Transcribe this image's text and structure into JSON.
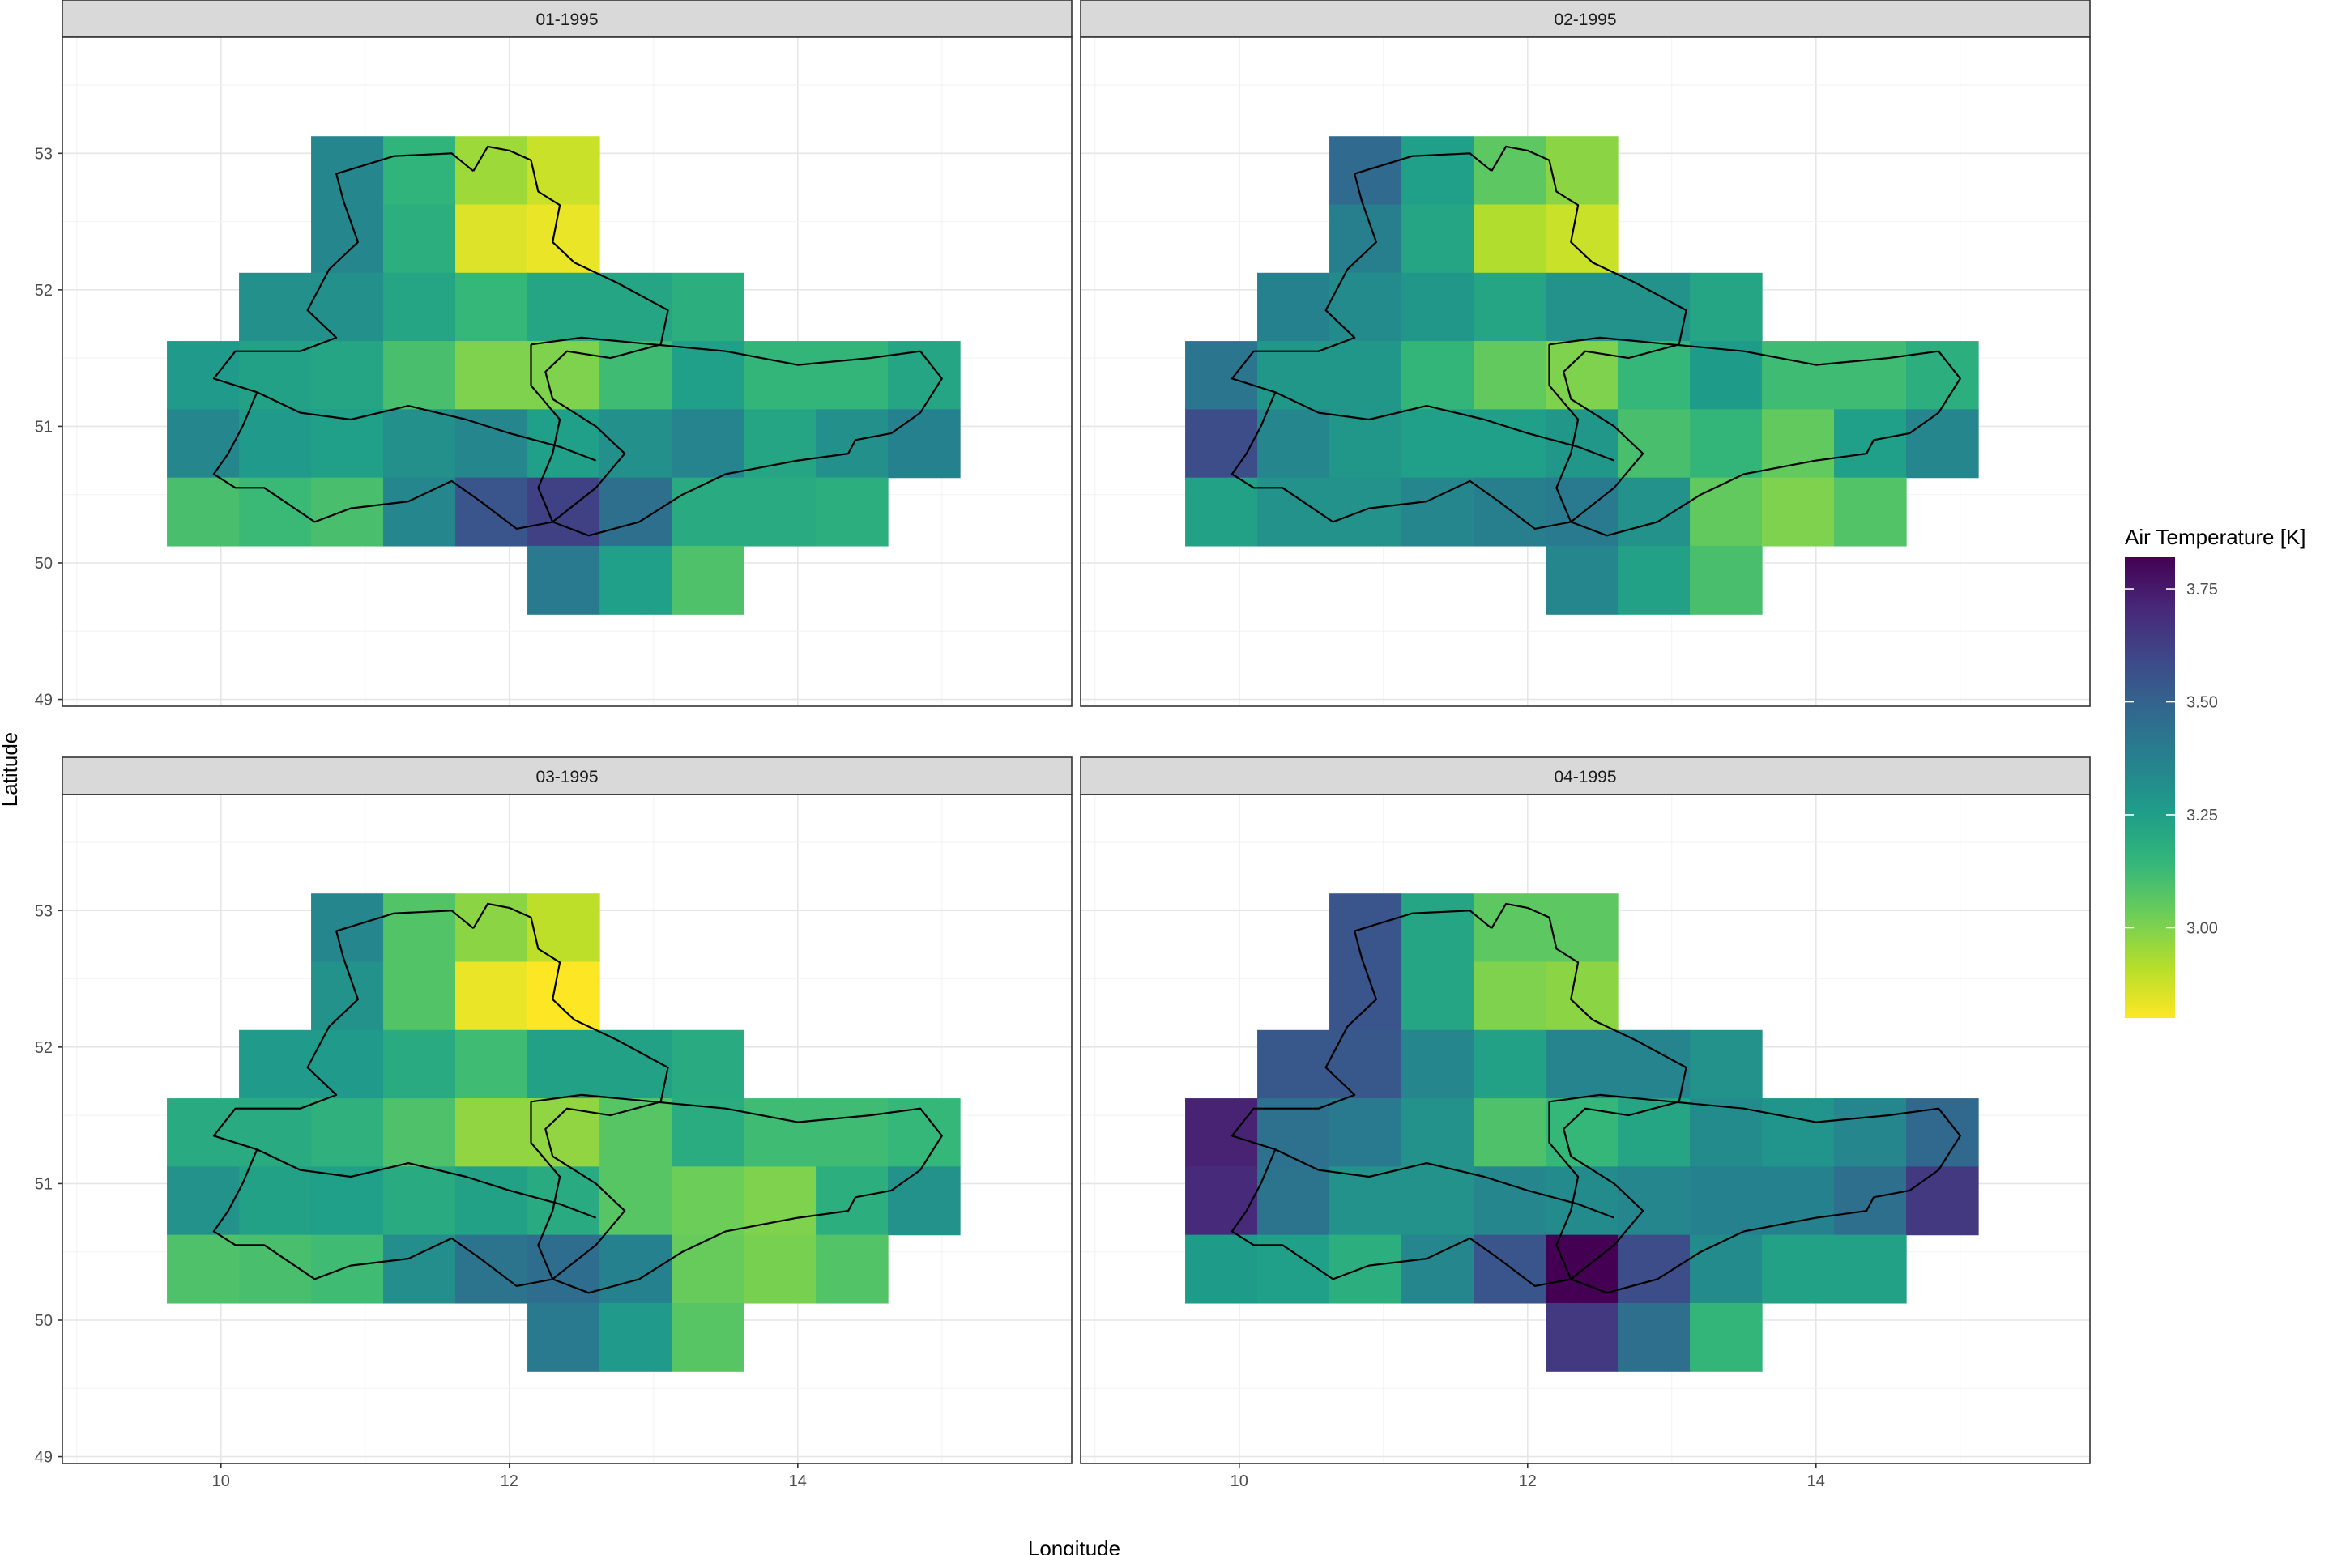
{
  "chart_data": {
    "type": "heatmap",
    "xlabel": "Longitude",
    "ylabel": "Latitude",
    "xlim": [
      8.9,
      15.9
    ],
    "ylim": [
      48.95,
      53.85
    ],
    "x_ticks": [
      10,
      12,
      14
    ],
    "y_ticks": [
      49,
      50,
      51,
      52,
      53
    ],
    "x_tick_labels": [
      "10",
      "12",
      "14"
    ],
    "y_tick_labels": [
      "49",
      "50",
      "51",
      "52",
      "53"
    ],
    "grid": true,
    "cell_size_deg": 0.5,
    "grid_lon": [
      9.875,
      10.375,
      10.875,
      11.375,
      11.875,
      12.375,
      12.875,
      13.375,
      13.875,
      14.375,
      14.875
    ],
    "grid_lat": [
      52.875,
      52.375,
      51.875,
      51.375,
      50.875,
      50.375,
      49.875
    ],
    "legend": {
      "title": "Air Temperature [K]",
      "position": "right",
      "range": [
        2.8,
        3.82
      ],
      "ticks": [
        3.0,
        3.25,
        3.5,
        3.75
      ],
      "tick_labels": [
        "3.00",
        "3.25",
        "3.50",
        "3.75"
      ],
      "colors": [
        "#fde725",
        "#b5de2b",
        "#6ece58",
        "#35b779",
        "#1f9e89",
        "#26828e",
        "#31688e",
        "#3e4989",
        "#482878",
        "#440154"
      ]
    },
    "panels": [
      {
        "label": "01-1995",
        "values": [
          [
            null,
            null,
            3.35,
            3.16,
            2.95,
            2.88,
            null,
            null,
            null,
            null,
            null
          ],
          [
            null,
            null,
            3.35,
            3.18,
            2.85,
            2.83,
            null,
            null,
            null,
            null,
            null
          ],
          [
            null,
            3.31,
            3.31,
            3.22,
            3.14,
            3.22,
            3.22,
            3.18,
            null,
            null,
            null
          ],
          [
            3.27,
            3.24,
            3.22,
            3.1,
            3.0,
            3.0,
            3.12,
            3.25,
            3.15,
            3.15,
            3.22
          ],
          [
            3.35,
            3.27,
            3.25,
            3.31,
            3.35,
            3.25,
            3.31,
            3.36,
            3.22,
            3.31,
            3.37
          ],
          [
            3.1,
            3.13,
            3.1,
            3.35,
            3.55,
            3.62,
            3.45,
            3.2,
            3.2,
            3.18,
            null
          ],
          [
            null,
            null,
            null,
            null,
            null,
            3.4,
            3.25,
            3.09,
            null,
            null,
            null
          ]
        ]
      },
      {
        "label": "02-1995",
        "values": [
          [
            null,
            null,
            3.47,
            3.25,
            3.06,
            2.98,
            null,
            null,
            null,
            null,
            null
          ],
          [
            null,
            null,
            3.38,
            3.22,
            2.92,
            2.88,
            null,
            null,
            null,
            null,
            null
          ],
          [
            null,
            3.37,
            3.33,
            3.28,
            3.22,
            3.3,
            3.3,
            3.22,
            null,
            null,
            null
          ],
          [
            3.42,
            3.28,
            3.28,
            3.15,
            3.05,
            3.0,
            3.14,
            3.26,
            3.12,
            3.12,
            3.18
          ],
          [
            3.58,
            3.35,
            3.28,
            3.25,
            3.25,
            3.28,
            3.1,
            3.15,
            3.05,
            3.25,
            3.35
          ],
          [
            3.24,
            3.3,
            3.3,
            3.35,
            3.38,
            3.4,
            3.3,
            3.05,
            3.0,
            3.08,
            null
          ],
          [
            null,
            null,
            null,
            null,
            null,
            3.35,
            3.24,
            3.1,
            null,
            null,
            null
          ]
        ]
      },
      {
        "label": "03-1995",
        "values": [
          [
            null,
            null,
            3.35,
            3.08,
            2.98,
            2.9,
            null,
            null,
            null,
            null,
            null
          ],
          [
            null,
            null,
            3.3,
            3.08,
            2.83,
            2.8,
            null,
            null,
            null,
            null,
            null
          ],
          [
            null,
            3.27,
            3.27,
            3.2,
            3.12,
            3.24,
            3.24,
            3.2,
            null,
            null,
            null
          ],
          [
            3.2,
            3.2,
            3.17,
            3.09,
            2.97,
            2.97,
            3.07,
            3.19,
            3.12,
            3.12,
            3.14
          ],
          [
            3.3,
            3.24,
            3.25,
            3.2,
            3.24,
            3.2,
            3.07,
            3.03,
            3.0,
            3.18,
            3.3
          ],
          [
            3.09,
            3.1,
            3.12,
            3.32,
            3.43,
            3.46,
            3.37,
            3.04,
            3.01,
            3.08,
            null
          ],
          [
            null,
            null,
            null,
            null,
            null,
            3.4,
            3.27,
            3.07,
            null,
            null,
            null
          ]
        ]
      },
      {
        "label": "04-1995",
        "values": [
          [
            null,
            null,
            3.55,
            3.22,
            3.06,
            3.06,
            null,
            null,
            null,
            null,
            null
          ],
          [
            null,
            null,
            3.55,
            3.22,
            3.0,
            2.98,
            null,
            null,
            null,
            null,
            null
          ],
          [
            null,
            3.54,
            3.54,
            3.35,
            3.24,
            3.36,
            3.36,
            3.3,
            null,
            null,
            null
          ],
          [
            3.72,
            3.44,
            3.4,
            3.3,
            3.09,
            3.14,
            3.22,
            3.33,
            3.29,
            3.35,
            3.48
          ],
          [
            3.7,
            3.43,
            3.3,
            3.3,
            3.35,
            3.33,
            3.35,
            3.37,
            3.37,
            3.45,
            3.65
          ],
          [
            3.26,
            3.25,
            3.18,
            3.35,
            3.55,
            3.82,
            3.58,
            3.33,
            3.24,
            3.24,
            null
          ],
          [
            null,
            null,
            null,
            null,
            null,
            3.65,
            3.45,
            3.15,
            null,
            null,
            null
          ]
        ]
      }
    ]
  }
}
